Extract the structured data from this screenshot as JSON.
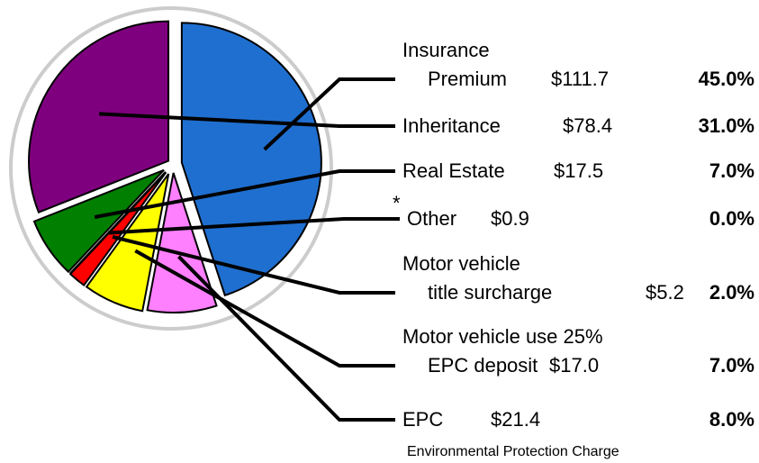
{
  "chart_data": {
    "type": "pie",
    "categories": [
      "Insurance\nPremium",
      "EPC",
      "Motor vehicle use 25%\nEPC deposit",
      "Motor vehicle\ntitle surcharge",
      "Other",
      "Real Estate",
      "Inheritance"
    ],
    "values": [
      45.0,
      8.0,
      7.0,
      2.0,
      0.0,
      7.0,
      31.0
    ],
    "value_labels": [
      "45.0%",
      "8.0%",
      "7.0%",
      "2.0%",
      "0.0%",
      "7.0%",
      "31.0%"
    ],
    "amounts": [
      111.7,
      21.4,
      17.0,
      5.2,
      0.9,
      17.5,
      78.4
    ],
    "amount_labels": [
      "$111.7",
      "$21.4",
      "$17.0",
      "$5.2",
      "$0.9",
      "$17.5",
      "$78.4"
    ],
    "colors": [
      "#1f6fd0",
      "#ff80ff",
      "#ffff00",
      "#ff0000",
      "#ffffff",
      "#007f00",
      "#7f007f"
    ],
    "footnote_marker": "*",
    "footnote": "Environmental Protection Charge"
  }
}
